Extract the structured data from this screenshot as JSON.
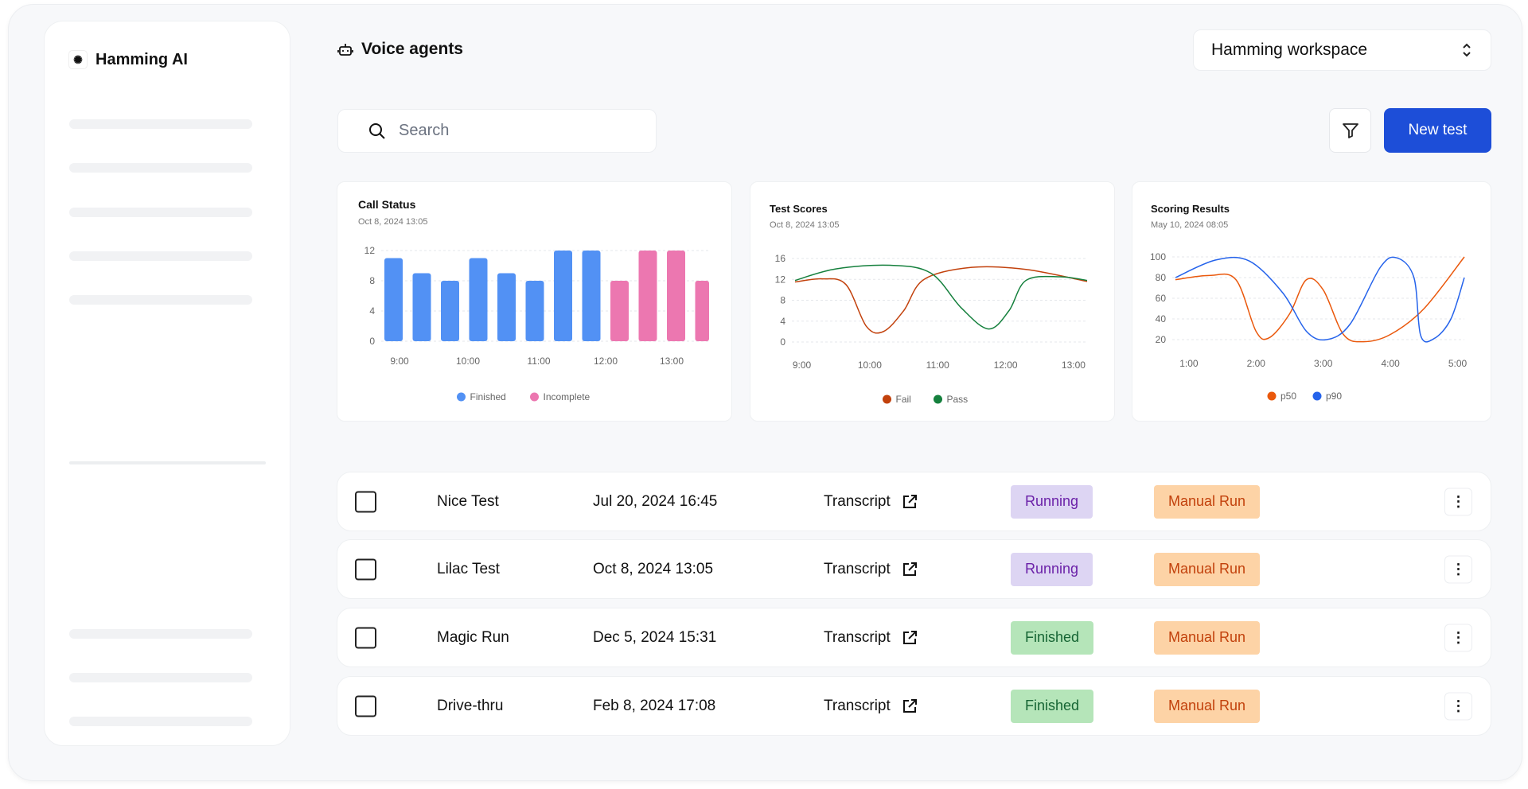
{
  "brand": {
    "name": "Hamming AI"
  },
  "header": {
    "title": "Voice agents",
    "workspace": "Hamming workspace"
  },
  "search": {
    "placeholder": "Search"
  },
  "toolbar": {
    "new_test": "New test"
  },
  "chart_data": [
    {
      "type": "bar",
      "title": "Call Status",
      "subtitle": "Oct 8, 2024 13:05",
      "ylim": [
        0,
        12
      ],
      "yticks": [
        "0",
        "4",
        "8",
        "12"
      ],
      "xticks": [
        "9:00",
        "10:00",
        "11:00",
        "12:00",
        "13:00"
      ],
      "values": [
        11,
        9,
        8,
        11,
        9,
        8,
        12,
        12,
        8,
        12,
        12,
        8
      ],
      "series_of_bar": [
        "Finished",
        "Finished",
        "Finished",
        "Finished",
        "Finished",
        "Finished",
        "Finished",
        "Finished",
        "Incomplete",
        "Incomplete",
        "Incomplete",
        "Incomplete"
      ],
      "legend": [
        {
          "name": "Finished",
          "color": "#5291f4"
        },
        {
          "name": "Incomplete",
          "color": "#ec77b0"
        }
      ]
    },
    {
      "type": "line",
      "title": "Test Scores",
      "subtitle": "Oct 8, 2024 13:05",
      "ylim": [
        0,
        16
      ],
      "xlim": [
        8.9,
        13.2
      ],
      "yticks": [
        "0",
        "4",
        "8",
        "12",
        "16"
      ],
      "xticks": [
        "9:00",
        "10:00",
        "11:00",
        "12:00",
        "13:00"
      ],
      "xtick_values": [
        9,
        10,
        11,
        12,
        13
      ],
      "series": [
        {
          "name": "Fail",
          "color": "#c2410c",
          "points": [
            [
              8.9,
              11.5
            ],
            [
              9.3,
              12.1
            ],
            [
              9.65,
              11
            ],
            [
              9.95,
              3
            ],
            [
              10.2,
              2
            ],
            [
              10.5,
              6
            ],
            [
              10.8,
              12
            ],
            [
              11.5,
              14.3
            ],
            [
              12.3,
              13.9
            ],
            [
              13.2,
              11.6
            ]
          ]
        },
        {
          "name": "Pass",
          "color": "#15803d",
          "points": [
            [
              8.9,
              11.8
            ],
            [
              9.5,
              14
            ],
            [
              10.3,
              14.7
            ],
            [
              10.9,
              13.2
            ],
            [
              11.35,
              6.5
            ],
            [
              11.75,
              2.5
            ],
            [
              12.05,
              6
            ],
            [
              12.3,
              11.8
            ],
            [
              12.8,
              12.5
            ],
            [
              13.2,
              11.8
            ]
          ]
        }
      ]
    },
    {
      "type": "line",
      "title": "Scoring Results",
      "subtitle": "May 10, 2024 08:05",
      "ylim": [
        20,
        100
      ],
      "xlim": [
        0.8,
        5.1
      ],
      "yticks": [
        "20",
        "40",
        "60",
        "80",
        "100"
      ],
      "xticks": [
        "1:00",
        "2:00",
        "3:00",
        "4:00",
        "5:00"
      ],
      "xtick_values": [
        1,
        2,
        3,
        4,
        5
      ],
      "series": [
        {
          "name": "p50",
          "color": "#ea580c",
          "points": [
            [
              0.8,
              78
            ],
            [
              1.3,
              82
            ],
            [
              1.7,
              78
            ],
            [
              2.0,
              28
            ],
            [
              2.2,
              22
            ],
            [
              2.5,
              45
            ],
            [
              2.75,
              78
            ],
            [
              3.0,
              68
            ],
            [
              3.3,
              25
            ],
            [
              3.6,
              18
            ],
            [
              4.0,
              25
            ],
            [
              4.5,
              50
            ],
            [
              5.1,
              100
            ]
          ]
        },
        {
          "name": "p90",
          "color": "#2563eb",
          "points": [
            [
              0.8,
              80
            ],
            [
              1.4,
              97
            ],
            [
              1.9,
              96
            ],
            [
              2.4,
              65
            ],
            [
              2.75,
              28
            ],
            [
              3.05,
              20
            ],
            [
              3.4,
              35
            ],
            [
              3.85,
              90
            ],
            [
              4.1,
              99
            ],
            [
              4.35,
              80
            ],
            [
              4.45,
              24
            ],
            [
              4.65,
              21
            ],
            [
              4.9,
              40
            ],
            [
              5.1,
              80
            ]
          ]
        }
      ]
    }
  ],
  "rows": [
    {
      "name": "Nice Test",
      "date": "Jul 20, 2024 16:45",
      "transcript": "Transcript",
      "status": "Running",
      "type": "Manual Run"
    },
    {
      "name": "Lilac Test",
      "date": "Oct 8, 2024 13:05",
      "transcript": "Transcript",
      "status": "Running",
      "type": "Manual Run"
    },
    {
      "name": "Magic Run",
      "date": "Dec 5, 2024 15:31",
      "transcript": "Transcript",
      "status": "Finished",
      "type": "Manual Run"
    },
    {
      "name": "Drive-thru",
      "date": "Feb 8, 2024 17:08",
      "transcript": "Transcript",
      "status": "Finished",
      "type": "Manual Run"
    }
  ]
}
